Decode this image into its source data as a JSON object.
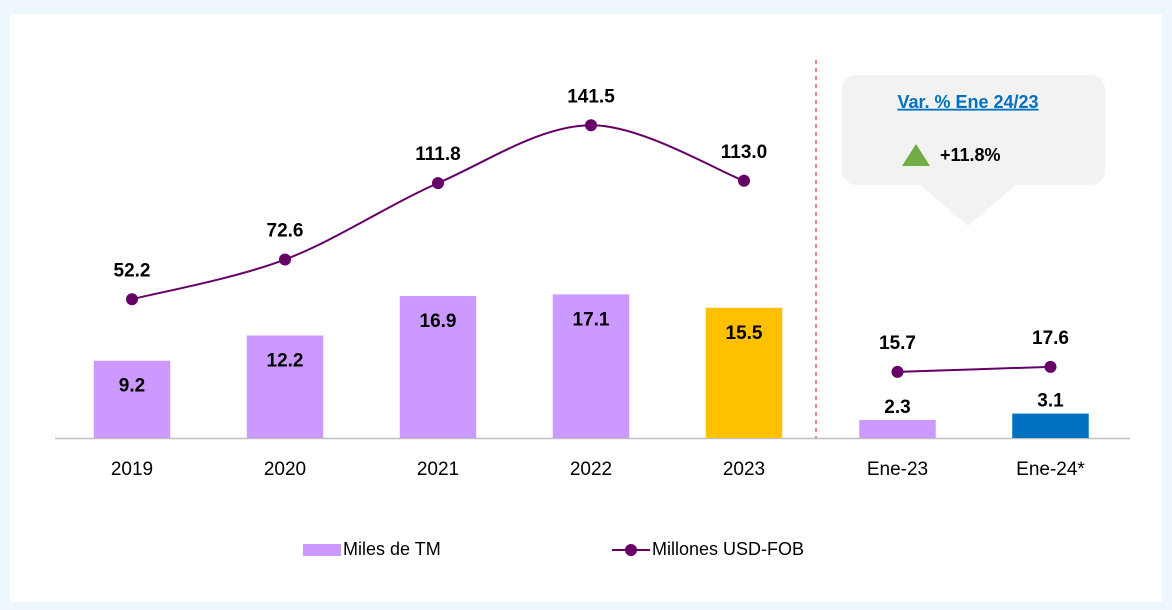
{
  "chart_data": [
    {
      "type": "bar",
      "categories": [
        "2019",
        "2020",
        "2021",
        "2022",
        "2023"
      ],
      "ylim": [
        0,
        45
      ],
      "y2lim": [
        -19,
        175
      ],
      "series": [
        {
          "name": "Miles de TM",
          "color": "#cc99ff",
          "colors": [
            "#cc99ff",
            "#cc99ff",
            "#cc99ff",
            "#cc99ff",
            "#ffc000"
          ],
          "values": [
            9.2,
            12.2,
            16.9,
            17.1,
            15.5
          ]
        },
        {
          "name": "Millones USD-FOB",
          "color": "#660066",
          "axis": "y2",
          "values": [
            52.2,
            72.6,
            111.8,
            141.5,
            113.0
          ],
          "value_labels": [
            "52.2",
            "72.6",
            "111.8",
            "141.5",
            "113.0"
          ]
        }
      ]
    },
    {
      "type": "bar",
      "categories": [
        "Ene-23",
        "Ene-24*"
      ],
      "ylim": [
        0,
        48
      ],
      "y2lim": [
        -9.4,
        134
      ],
      "callout_title": "Var. % Ene 24/23",
      "callout_value": "+11.8%",
      "series": [
        {
          "name": "Miles de TM",
          "color": "#cc99ff",
          "colors": [
            "#cc99ff",
            "#0070c0"
          ],
          "values": [
            2.3,
            3.1
          ]
        },
        {
          "name": "Millones USD-FOB",
          "color": "#660066",
          "axis": "y2",
          "values": [
            15.7,
            17.6
          ]
        }
      ]
    }
  ]
}
